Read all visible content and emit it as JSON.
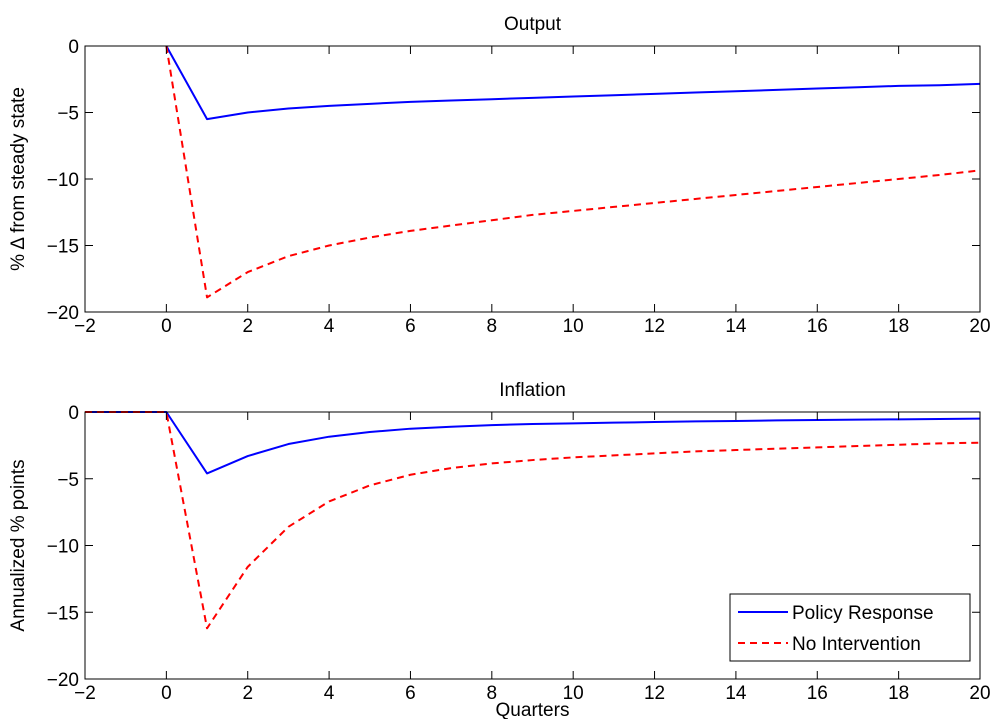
{
  "chart_data": [
    {
      "type": "line",
      "title": "Output",
      "ylabel": "% Δ from steady state",
      "xlabel": "",
      "xlim": [
        -2,
        20
      ],
      "ylim": [
        -20,
        0
      ],
      "xticks": [
        -2,
        0,
        2,
        4,
        6,
        8,
        10,
        12,
        14,
        16,
        18,
        20
      ],
      "yticks": [
        0,
        -5,
        -10,
        -15,
        -20
      ],
      "grid": false,
      "series": [
        {
          "name": "Policy Response",
          "color": "#0000ff",
          "style": "solid",
          "x": [
            0,
            1,
            2,
            3,
            4,
            5,
            6,
            7,
            8,
            9,
            10,
            11,
            12,
            13,
            14,
            15,
            16,
            17,
            18,
            19,
            20
          ],
          "y": [
            0,
            -5.5,
            -5.0,
            -4.7,
            -4.5,
            -4.35,
            -4.2,
            -4.1,
            -4.0,
            -3.9,
            -3.8,
            -3.7,
            -3.6,
            -3.5,
            -3.4,
            -3.3,
            -3.2,
            -3.1,
            -3.0,
            -2.95,
            -2.85
          ]
        },
        {
          "name": "No Intervention",
          "color": "#ff0000",
          "style": "dashed",
          "x": [
            0,
            1,
            2,
            3,
            4,
            5,
            6,
            7,
            8,
            9,
            10,
            11,
            12,
            13,
            14,
            15,
            16,
            17,
            18,
            19,
            20
          ],
          "y": [
            0,
            -18.9,
            -17.0,
            -15.8,
            -15.0,
            -14.4,
            -13.9,
            -13.5,
            -13.1,
            -12.7,
            -12.4,
            -12.1,
            -11.8,
            -11.5,
            -11.2,
            -10.9,
            -10.6,
            -10.3,
            -10.0,
            -9.7,
            -9.35
          ]
        }
      ]
    },
    {
      "type": "line",
      "title": "Inflation",
      "ylabel": "Annualized % points",
      "xlabel": "Quarters",
      "xlim": [
        -2,
        20
      ],
      "ylim": [
        -20,
        0
      ],
      "xticks": [
        -2,
        0,
        2,
        4,
        6,
        8,
        10,
        12,
        14,
        16,
        18,
        20
      ],
      "yticks": [
        0,
        -5,
        -10,
        -15,
        -20
      ],
      "grid": false,
      "legend_position": "bottom-right",
      "series": [
        {
          "name": "Policy Response",
          "color": "#0000ff",
          "style": "solid",
          "x": [
            -2,
            -1,
            0,
            1,
            2,
            3,
            4,
            5,
            6,
            7,
            8,
            9,
            10,
            11,
            12,
            13,
            14,
            15,
            16,
            17,
            18,
            19,
            20
          ],
          "y": [
            0,
            0,
            0,
            -4.6,
            -3.3,
            -2.4,
            -1.85,
            -1.5,
            -1.25,
            -1.1,
            -0.98,
            -0.9,
            -0.85,
            -0.8,
            -0.75,
            -0.7,
            -0.67,
            -0.63,
            -0.6,
            -0.57,
            -0.55,
            -0.52,
            -0.5
          ]
        },
        {
          "name": "No Intervention",
          "color": "#ff0000",
          "style": "dashed",
          "x": [
            -2,
            -1,
            0,
            1,
            2,
            3,
            4,
            5,
            6,
            7,
            8,
            9,
            10,
            11,
            12,
            13,
            14,
            15,
            16,
            17,
            18,
            19,
            20
          ],
          "y": [
            0,
            0,
            0,
            -16.2,
            -11.6,
            -8.6,
            -6.7,
            -5.5,
            -4.7,
            -4.2,
            -3.85,
            -3.6,
            -3.4,
            -3.25,
            -3.1,
            -2.95,
            -2.85,
            -2.75,
            -2.65,
            -2.55,
            -2.45,
            -2.35,
            -2.3
          ]
        }
      ]
    }
  ]
}
